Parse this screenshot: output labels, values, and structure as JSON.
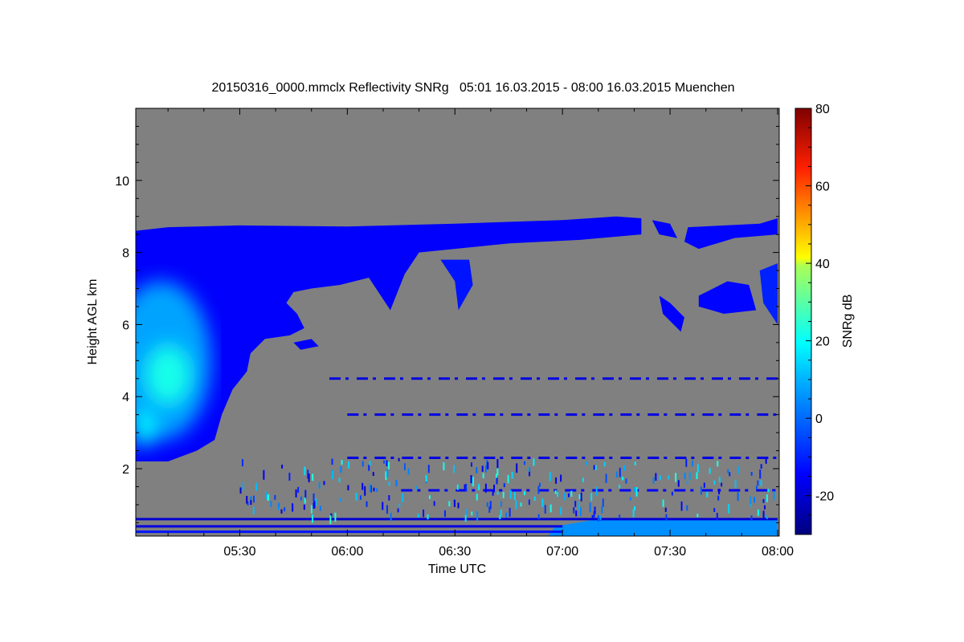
{
  "chart_data": {
    "type": "heatmap",
    "title": "20150316_0000.mmclx Reflectivity SNRg   05:01 16.03.2015 - 08:00 16.03.2015 Muenchen",
    "xlabel": "Time UTC",
    "ylabel": "Height AGL km",
    "xlim_minutes_after_0500": [
      1,
      180
    ],
    "ylim": [
      0.13,
      12
    ],
    "xticks": [
      {
        "m": 30,
        "label": "05:30"
      },
      {
        "m": 60,
        "label": "06:00"
      },
      {
        "m": 90,
        "label": "06:30"
      },
      {
        "m": 120,
        "label": "07:00"
      },
      {
        "m": 150,
        "label": "07:30"
      },
      {
        "m": 180,
        "label": "08:00"
      }
    ],
    "yticks": [
      {
        "v": 2,
        "label": "2"
      },
      {
        "v": 4,
        "label": "4"
      },
      {
        "v": 6,
        "label": "6"
      },
      {
        "v": 8,
        "label": "8"
      },
      {
        "v": 10,
        "label": "10"
      }
    ],
    "background_color": "#808080",
    "colorbar": {
      "label": "SNRg dB",
      "range": [
        -30,
        80
      ],
      "ticks": [
        {
          "v": -20,
          "label": "-20"
        },
        {
          "v": 0,
          "label": "0"
        },
        {
          "v": 20,
          "label": "20"
        },
        {
          "v": 40,
          "label": "40"
        },
        {
          "v": 60,
          "label": "60"
        },
        {
          "v": 80,
          "label": "80"
        }
      ]
    },
    "features": [
      {
        "name": "main-cloud",
        "snr": -15,
        "points": [
          [
            1,
            8.6
          ],
          [
            10,
            8.7
          ],
          [
            30,
            8.75
          ],
          [
            60,
            8.72
          ],
          [
            90,
            8.8
          ],
          [
            120,
            8.9
          ],
          [
            135,
            9.0
          ],
          [
            142,
            8.95
          ],
          [
            142,
            8.5
          ],
          [
            125,
            8.35
          ],
          [
            105,
            8.25
          ],
          [
            90,
            8.1
          ],
          [
            80,
            8.0
          ],
          [
            76,
            7.4
          ],
          [
            72,
            6.4
          ],
          [
            66,
            7.3
          ],
          [
            58,
            7.1
          ],
          [
            50,
            7.0
          ],
          [
            45,
            6.9
          ],
          [
            43,
            6.6
          ],
          [
            46,
            6.3
          ],
          [
            48,
            5.9
          ],
          [
            44,
            5.7
          ],
          [
            37,
            5.6
          ],
          [
            33,
            5.2
          ],
          [
            32,
            4.7
          ],
          [
            28,
            4.2
          ],
          [
            25,
            3.5
          ],
          [
            23,
            2.8
          ],
          [
            18,
            2.5
          ],
          [
            10,
            2.2
          ],
          [
            1,
            2.2
          ]
        ]
      },
      {
        "name": "cloud-anvil-tail",
        "snr": -15,
        "points": [
          [
            45,
            5.5
          ],
          [
            50,
            5.6
          ],
          [
            52,
            5.4
          ],
          [
            47,
            5.3
          ]
        ]
      },
      {
        "name": "virga-630",
        "snr": -12,
        "points": [
          [
            86,
            7.8
          ],
          [
            94,
            7.8
          ],
          [
            95,
            7.1
          ],
          [
            91,
            6.4
          ],
          [
            90,
            7.2
          ]
        ]
      },
      {
        "name": "upper-patch-1",
        "snr": -15,
        "points": [
          [
            145,
            8.9
          ],
          [
            150,
            8.8
          ],
          [
            152,
            8.4
          ],
          [
            147,
            8.5
          ]
        ]
      },
      {
        "name": "upper-patch-2",
        "snr": -14,
        "points": [
          [
            155,
            8.7
          ],
          [
            175,
            8.8
          ],
          [
            180,
            8.95
          ],
          [
            180,
            8.5
          ],
          [
            168,
            8.4
          ],
          [
            158,
            8.1
          ],
          [
            154,
            8.3
          ]
        ]
      },
      {
        "name": "mid-patch-1",
        "snr": -15,
        "points": [
          [
            147,
            6.8
          ],
          [
            150,
            6.6
          ],
          [
            154,
            6.2
          ],
          [
            153,
            5.8
          ],
          [
            148,
            6.3
          ]
        ]
      },
      {
        "name": "mid-patch-2",
        "snr": -14,
        "points": [
          [
            158,
            6.8
          ],
          [
            166,
            7.2
          ],
          [
            172,
            7.1
          ],
          [
            174,
            6.4
          ],
          [
            165,
            6.3
          ],
          [
            158,
            6.5
          ]
        ]
      },
      {
        "name": "mid-patch-3",
        "snr": -10,
        "points": [
          [
            175,
            7.5
          ],
          [
            180,
            7.7
          ],
          [
            180,
            6.0
          ],
          [
            176,
            6.6
          ]
        ]
      },
      {
        "name": "ground-clutter",
        "snr": 5,
        "points": [
          [
            116,
            0.13
          ],
          [
            118,
            0.4
          ],
          [
            130,
            0.6
          ],
          [
            180,
            0.6
          ],
          [
            180,
            0.13
          ]
        ]
      }
    ],
    "lines": [
      {
        "name": "line-4.5km",
        "km": 4.5,
        "from": 55,
        "to": 180,
        "snr": -18
      },
      {
        "name": "line-3.5km",
        "km": 3.5,
        "from": 60,
        "to": 180,
        "snr": -18
      },
      {
        "name": "line-2.3km",
        "km": 2.3,
        "from": 60,
        "to": 180,
        "snr": -18
      },
      {
        "name": "line-1.4km",
        "km": 1.4,
        "from": 75,
        "to": 180,
        "snr": -16
      },
      {
        "name": "band-0.6km",
        "km": 0.6,
        "from": 1,
        "to": 180,
        "snr": -20
      },
      {
        "name": "band-0.4km",
        "km": 0.4,
        "from": 1,
        "to": 120,
        "snr": -18
      },
      {
        "name": "band-0.25km",
        "km": 0.25,
        "from": 1,
        "to": 120,
        "snr": -12
      }
    ],
    "cores": [
      {
        "name": "cyan-core",
        "m": 8,
        "km": 5,
        "rx": 14,
        "ry": 2.2,
        "snr": 8
      },
      {
        "name": "green-core",
        "m": 10,
        "km": 4.6,
        "rx": 6,
        "ry": 0.8,
        "snr": 22
      },
      {
        "name": "green-core-low",
        "m": 3,
        "km": 3.1,
        "rx": 3,
        "ry": 0.5,
        "snr": 20
      }
    ]
  }
}
